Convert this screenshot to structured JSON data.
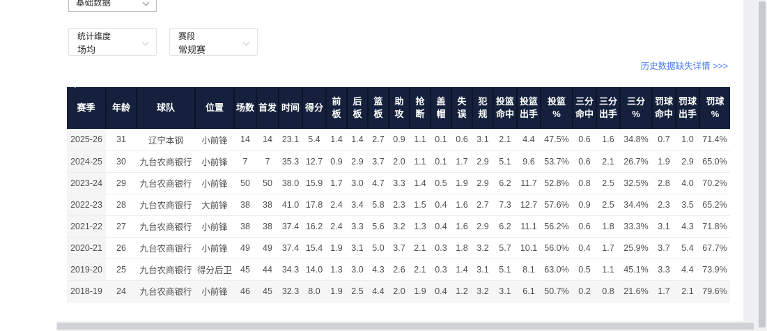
{
  "filters": {
    "category": {
      "value": "基础数据"
    },
    "dimension": {
      "label": "统计维度",
      "value": "场均"
    },
    "stage": {
      "label": "赛段",
      "value": "常规赛"
    }
  },
  "header_link": {
    "text": "历史数据缺失详情 >>>"
  },
  "icons": {
    "category_chevron": "chevron-down",
    "dimension_chevron": "chevron-down",
    "stage_chevron": "chevron-down"
  },
  "colors": {
    "table_header_bg": "#15213c",
    "link_blue": "#4b7df2",
    "season_column_bg": "#f5f5f5",
    "row_border": "#ededed"
  },
  "table": {
    "columns": [
      "赛季",
      "年龄",
      "球队",
      "位置",
      "场数",
      "首发",
      "时间",
      "得分",
      "前板",
      "后板",
      "篮板",
      "助攻",
      "抢断",
      "盖帽",
      "失误",
      "犯规",
      "投篮\n命中",
      "投篮\n出手",
      "投篮\n%",
      "三分\n命中",
      "三分\n出手",
      "三分\n%",
      "罚球\n命中",
      "罚球\n出手",
      "罚球\n%"
    ],
    "rows": [
      [
        "2025-26",
        "31",
        "辽宁本钢",
        "小前锋",
        "14",
        "14",
        "23.1",
        "5.4",
        "1.4",
        "1.4",
        "2.7",
        "0.9",
        "1.1",
        "0.1",
        "0.6",
        "3.1",
        "2.1",
        "4.4",
        "47.5%",
        "0.6",
        "1.6",
        "34.8%",
        "0.7",
        "1.0",
        "71.4%"
      ],
      [
        "2024-25",
        "30",
        "九台农商银行",
        "小前锋",
        "7",
        "7",
        "35.3",
        "12.7",
        "0.9",
        "2.9",
        "3.7",
        "2.0",
        "1.1",
        "0.1",
        "1.7",
        "2.9",
        "5.1",
        "9.6",
        "53.7%",
        "0.6",
        "2.1",
        "26.7%",
        "1.9",
        "2.9",
        "65.0%"
      ],
      [
        "2023-24",
        "29",
        "九台农商银行",
        "小前锋",
        "50",
        "50",
        "38.0",
        "15.9",
        "1.7",
        "3.0",
        "4.7",
        "3.3",
        "1.4",
        "0.5",
        "1.9",
        "2.9",
        "6.2",
        "11.7",
        "52.8%",
        "0.8",
        "2.5",
        "32.5%",
        "2.8",
        "4.0",
        "70.2%"
      ],
      [
        "2022-23",
        "28",
        "九台农商银行",
        "大前锋",
        "38",
        "38",
        "41.0",
        "17.8",
        "2.4",
        "3.4",
        "5.8",
        "2.3",
        "1.5",
        "0.4",
        "1.6",
        "2.7",
        "7.3",
        "12.7",
        "57.6%",
        "0.9",
        "2.5",
        "34.4%",
        "2.3",
        "3.5",
        "65.2%"
      ],
      [
        "2021-22",
        "27",
        "九台农商银行",
        "小前锋",
        "38",
        "38",
        "37.4",
        "16.2",
        "2.4",
        "3.3",
        "5.6",
        "3.2",
        "1.3",
        "0.4",
        "1.6",
        "2.9",
        "6.2",
        "11.1",
        "56.2%",
        "0.6",
        "1.8",
        "33.3%",
        "3.1",
        "4.3",
        "71.8%"
      ],
      [
        "2020-21",
        "26",
        "九台农商银行",
        "小前锋",
        "49",
        "49",
        "37.4",
        "15.4",
        "1.9",
        "3.1",
        "5.0",
        "3.7",
        "2.1",
        "0.3",
        "1.8",
        "3.2",
        "5.7",
        "10.1",
        "56.0%",
        "0.4",
        "1.7",
        "25.9%",
        "3.7",
        "5.4",
        "67.7%"
      ],
      [
        "2019-20",
        "25",
        "九台农商银行",
        "得分后卫",
        "45",
        "44",
        "34.3",
        "14.0",
        "1.3",
        "3.0",
        "4.3",
        "2.6",
        "2.1",
        "0.3",
        "1.4",
        "3.1",
        "5.1",
        "8.1",
        "63.0%",
        "0.5",
        "1.1",
        "45.1%",
        "3.3",
        "4.4",
        "73.9%"
      ],
      [
        "2018-19",
        "24",
        "九台农商银行",
        "小前锋",
        "46",
        "45",
        "32.3",
        "8.0",
        "1.9",
        "2.5",
        "4.4",
        "2.0",
        "1.9",
        "0.4",
        "1.2",
        "3.2",
        "3.1",
        "6.1",
        "50.7%",
        "0.2",
        "0.8",
        "21.6%",
        "1.7",
        "2.1",
        "79.6%"
      ]
    ]
  }
}
